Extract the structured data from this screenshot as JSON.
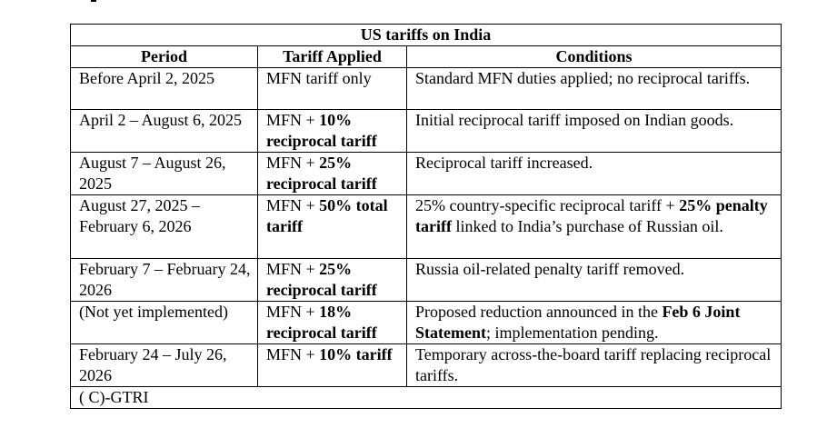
{
  "table": {
    "title": "US tariffs on India",
    "headers": {
      "period": "Period",
      "tariff": "Tariff Applied",
      "conditions": "Conditions"
    },
    "rows": [
      {
        "period": "Before April 2, 2025",
        "tariff": [
          "MFN tariff only"
        ],
        "conditions": [
          "Standard MFN duties applied; no reciprocal tariffs."
        ]
      },
      {
        "period": "April 2 – August 6, 2025",
        "tariff": [
          "MFN + ",
          "10% reciprocal tariff"
        ],
        "conditions": [
          "Initial reciprocal tariff imposed on Indian goods."
        ]
      },
      {
        "period": "August 7 – August 26, 2025",
        "tariff": [
          "MFN + ",
          "25% reciprocal tariff"
        ],
        "conditions": [
          "Reciprocal tariff increased."
        ]
      },
      {
        "period": "August 27, 2025 – February 6, 2026",
        "tariff": [
          "MFN + ",
          "50% total tariff"
        ],
        "conditions": [
          "25% country-specific reciprocal tariff + ",
          "25% penalty tariff",
          " linked to India’s purchase of Russian oil."
        ]
      },
      {
        "period": "February 7 – February 24, 2026",
        "tariff": [
          "MFN + ",
          "25% reciprocal tariff"
        ],
        "conditions": [
          "Russia oil-related penalty tariff removed."
        ]
      },
      {
        "period": "(Not yet implemented)",
        "tariff": [
          "MFN + ",
          "18% reciprocal tariff"
        ],
        "conditions": [
          "Proposed reduction announced in the ",
          "Feb 6 Joint Statement",
          "; implementation pending."
        ]
      },
      {
        "period": "February 24 – July 26, 2026",
        "tariff": [
          "MFN + ",
          "10% tariff"
        ],
        "conditions": [
          "Temporary across-the-board tariff replacing reciprocal tariffs."
        ]
      }
    ],
    "source": "( C)-GTRI"
  }
}
